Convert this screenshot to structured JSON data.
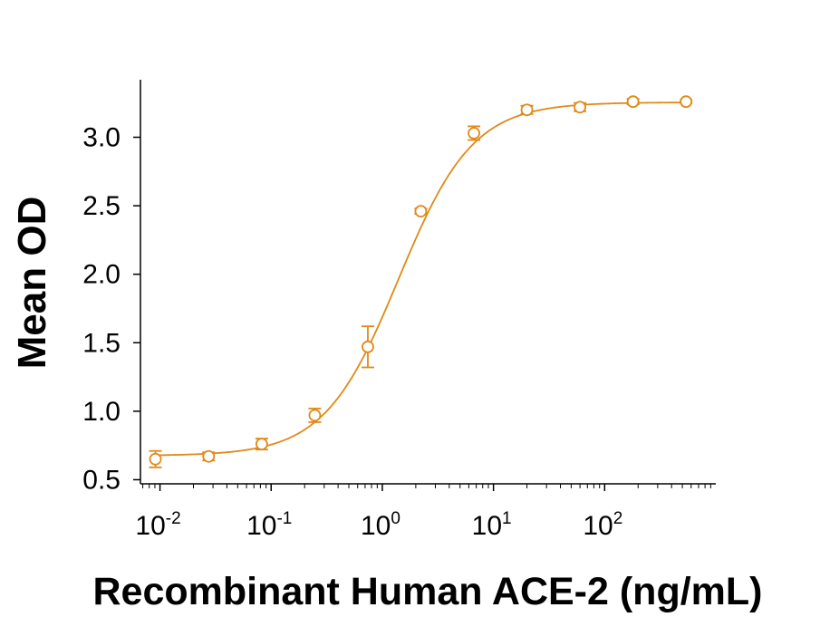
{
  "chart_data": {
    "type": "scatter",
    "title": "",
    "xlabel": "Recombinant Human ACE-2 (ng/mL)",
    "ylabel": "Mean OD",
    "x_scale": "log",
    "xlim": [
      0.00667,
      1000
    ],
    "ylim": [
      0.47,
      3.42
    ],
    "grid": false,
    "legend": "none",
    "color": "#E08A17",
    "x_ticks": [
      {
        "value": 0.01,
        "base": "10",
        "exp": "-2"
      },
      {
        "value": 0.1,
        "base": "10",
        "exp": "-1"
      },
      {
        "value": 1,
        "base": "10",
        "exp": "0"
      },
      {
        "value": 10,
        "base": "10",
        "exp": "1"
      },
      {
        "value": 100,
        "base": "10",
        "exp": "2"
      }
    ],
    "y_ticks": [
      {
        "value": 0.5,
        "label": "0.5"
      },
      {
        "value": 1.0,
        "label": "1.0"
      },
      {
        "value": 1.5,
        "label": "1.5"
      },
      {
        "value": 2.0,
        "label": "2.0"
      },
      {
        "value": 2.5,
        "label": "2.5"
      },
      {
        "value": 3.0,
        "label": "3.0"
      }
    ],
    "series": [
      {
        "points": [
          {
            "x": 0.0091,
            "y": 0.65,
            "err": 0.06
          },
          {
            "x": 0.0274,
            "y": 0.67,
            "err": 0.03
          },
          {
            "x": 0.0823,
            "y": 0.76,
            "err": 0.04
          },
          {
            "x": 0.247,
            "y": 0.97,
            "err": 0.05
          },
          {
            "x": 0.741,
            "y": 1.47,
            "err": 0.15
          },
          {
            "x": 2.22,
            "y": 2.46,
            "err": 0.02
          },
          {
            "x": 6.67,
            "y": 3.03,
            "err": 0.05
          },
          {
            "x": 20.0,
            "y": 3.2,
            "err": 0.03
          },
          {
            "x": 60.0,
            "y": 3.22,
            "err": 0.03
          },
          {
            "x": 180.0,
            "y": 3.26,
            "err": 0.02
          },
          {
            "x": 540.0,
            "y": 3.26,
            "err": 0.01
          }
        ],
        "fit": {
          "model": "4PL",
          "bottom": 0.675,
          "top": 3.255,
          "ec50": 1.4,
          "hill": 1.3,
          "x_range": [
            0.0091,
            540
          ]
        }
      }
    ]
  }
}
